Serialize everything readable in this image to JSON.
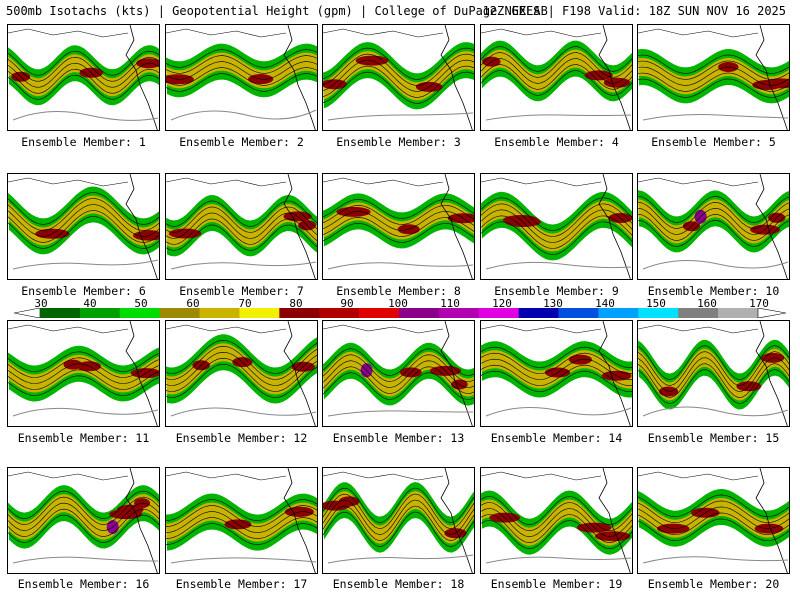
{
  "header": {
    "left": "500mb Isotachs (kts) | Geopotential Height (gpm) | College of DuPage NEXLAB",
    "right": "12Z GEFS | F198 Valid: 18Z SUN NOV 16 2025"
  },
  "colorbar": {
    "ticks": [
      "30",
      "40",
      "50",
      "60",
      "70",
      "80",
      "90",
      "100",
      "110",
      "120",
      "130",
      "140",
      "150",
      "160",
      "170"
    ],
    "colors": [
      "#006400",
      "#00a000",
      "#00dc00",
      "#9c8a00",
      "#c8b400",
      "#f0f000",
      "#8b0000",
      "#b00000",
      "#e00000",
      "#8b008b",
      "#b000b0",
      "#e000e0",
      "#0000b0",
      "#0050e0",
      "#00a0ff",
      "#00e0ff",
      "#808080",
      "#b0b0b0"
    ]
  },
  "panels": [
    {
      "label": "Ensemble Member: 1"
    },
    {
      "label": "Ensemble Member: 2"
    },
    {
      "label": "Ensemble Member: 3"
    },
    {
      "label": "Ensemble Member: 4"
    },
    {
      "label": "Ensemble Member: 5"
    },
    {
      "label": "Ensemble Member: 6"
    },
    {
      "label": "Ensemble Member: 7"
    },
    {
      "label": "Ensemble Member: 8"
    },
    {
      "label": "Ensemble Member: 9"
    },
    {
      "label": "Ensemble Member: 10"
    },
    {
      "label": "Ensemble Member: 11"
    },
    {
      "label": "Ensemble Member: 12"
    },
    {
      "label": "Ensemble Member: 13"
    },
    {
      "label": "Ensemble Member: 14"
    },
    {
      "label": "Ensemble Member: 15"
    },
    {
      "label": "Ensemble Member: 16"
    },
    {
      "label": "Ensemble Member: 17"
    },
    {
      "label": "Ensemble Member: 18"
    },
    {
      "label": "Ensemble Member: 19"
    },
    {
      "label": "Ensemble Member: 20"
    }
  ]
}
